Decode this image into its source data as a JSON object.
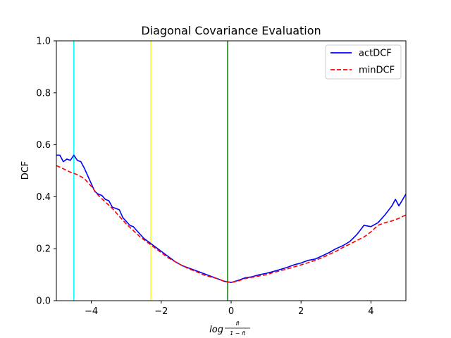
{
  "chart_data": {
    "type": "line",
    "title": "Diagonal Covariance Evaluation",
    "ylabel": "DCF",
    "xlabel": {
      "prefix": "log",
      "numerator": "π̃",
      "denominator": "1 − π̃"
    },
    "xlim": [
      -5,
      5
    ],
    "ylim": [
      0,
      1
    ],
    "xticks": [
      -4,
      -2,
      0,
      2,
      4
    ],
    "xtick_labels": [
      "−4",
      "−2",
      "0",
      "2",
      "4"
    ],
    "yticks": [
      0.0,
      0.2,
      0.4,
      0.6,
      0.8,
      1.0
    ],
    "ytick_labels": [
      "0.0",
      "0.2",
      "0.4",
      "0.6",
      "0.8",
      "1.0"
    ],
    "grid": false,
    "legend_position": "top-right",
    "vertical_lines": [
      {
        "x": -4.5,
        "color": "#00ffff"
      },
      {
        "x": -2.3,
        "color": "#ffff00"
      },
      {
        "x": -0.1,
        "color": "#008000"
      }
    ],
    "series": [
      {
        "name": "actDCF",
        "color": "#0000ff",
        "style": "solid",
        "x": [
          -5.0,
          -4.9,
          -4.8,
          -4.7,
          -4.6,
          -4.5,
          -4.4,
          -4.3,
          -4.2,
          -4.1,
          -4.0,
          -3.9,
          -3.8,
          -3.7,
          -3.6,
          -3.5,
          -3.4,
          -3.3,
          -3.2,
          -3.1,
          -3.0,
          -2.9,
          -2.8,
          -2.7,
          -2.6,
          -2.5,
          -2.4,
          -2.3,
          -2.2,
          -2.1,
          -2.0,
          -1.8,
          -1.6,
          -1.4,
          -1.2,
          -1.0,
          -0.8,
          -0.6,
          -0.4,
          -0.2,
          0.0,
          0.2,
          0.4,
          0.6,
          0.8,
          1.0,
          1.2,
          1.4,
          1.6,
          1.8,
          2.0,
          2.2,
          2.4,
          2.6,
          2.8,
          3.0,
          3.2,
          3.4,
          3.6,
          3.8,
          4.0,
          4.2,
          4.4,
          4.6,
          4.7,
          4.8,
          5.0
        ],
        "values": [
          0.56,
          0.56,
          0.535,
          0.545,
          0.54,
          0.56,
          0.54,
          0.535,
          0.51,
          0.48,
          0.45,
          0.42,
          0.41,
          0.405,
          0.39,
          0.385,
          0.36,
          0.355,
          0.35,
          0.32,
          0.305,
          0.29,
          0.285,
          0.27,
          0.255,
          0.24,
          0.23,
          0.22,
          0.21,
          0.2,
          0.19,
          0.17,
          0.15,
          0.135,
          0.125,
          0.115,
          0.105,
          0.095,
          0.085,
          0.075,
          0.07,
          0.078,
          0.088,
          0.092,
          0.1,
          0.105,
          0.112,
          0.12,
          0.128,
          0.138,
          0.145,
          0.155,
          0.16,
          0.172,
          0.185,
          0.2,
          0.212,
          0.228,
          0.255,
          0.29,
          0.285,
          0.3,
          0.33,
          0.365,
          0.39,
          0.365,
          0.41
        ]
      },
      {
        "name": "minDCF",
        "color": "#ff0000",
        "style": "dashed",
        "x": [
          -5.0,
          -4.6,
          -4.4,
          -4.2,
          -4.0,
          -3.8,
          -3.6,
          -3.4,
          -3.2,
          -3.0,
          -2.8,
          -2.6,
          -2.4,
          -2.2,
          -2.0,
          -1.8,
          -1.6,
          -1.4,
          -1.2,
          -1.0,
          -0.8,
          -0.6,
          -0.4,
          -0.2,
          0.0,
          0.2,
          0.4,
          0.6,
          0.8,
          1.0,
          1.2,
          1.4,
          1.6,
          1.8,
          2.0,
          2.2,
          2.4,
          2.6,
          2.8,
          3.0,
          3.2,
          3.4,
          3.6,
          3.8,
          4.0,
          4.2,
          4.4,
          4.6,
          4.8,
          5.0
        ],
        "values": [
          0.52,
          0.495,
          0.485,
          0.47,
          0.44,
          0.405,
          0.38,
          0.355,
          0.325,
          0.295,
          0.27,
          0.245,
          0.225,
          0.205,
          0.185,
          0.165,
          0.15,
          0.135,
          0.122,
          0.112,
          0.1,
          0.092,
          0.085,
          0.075,
          0.07,
          0.076,
          0.085,
          0.09,
          0.095,
          0.1,
          0.108,
          0.115,
          0.122,
          0.13,
          0.138,
          0.146,
          0.155,
          0.165,
          0.178,
          0.19,
          0.205,
          0.218,
          0.232,
          0.245,
          0.265,
          0.29,
          0.3,
          0.307,
          0.317,
          0.33
        ]
      }
    ]
  }
}
